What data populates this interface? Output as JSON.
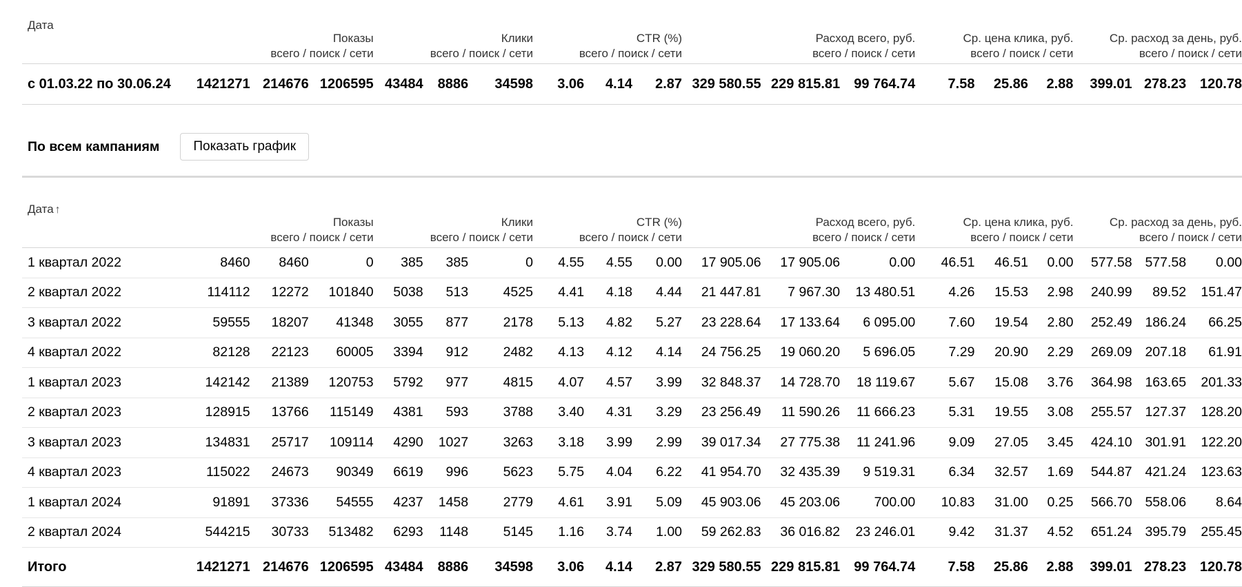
{
  "header": {
    "date": "Дата",
    "date_sortable": "Дата",
    "sort_arrow": "↑",
    "sub": "всего / поиск / сети",
    "impressions": "Показы",
    "clicks": "Клики",
    "ctr": "CTR (%)",
    "spend": "Расход всего, руб.",
    "avg_cpc": "Ср. цена клика, руб.",
    "avg_daily": "Ср. расход за день, руб."
  },
  "summary_row": [
    "с 01.03.22 по 30.06.24",
    "1421271",
    "214676",
    "1206595",
    "43484",
    "8886",
    "34598",
    "3.06",
    "4.14",
    "2.87",
    "329 580.55",
    "229 815.81",
    "99 764.74",
    "7.58",
    "25.86",
    "2.88",
    "399.01",
    "278.23",
    "120.78"
  ],
  "section": {
    "title": "По всем кампаниям",
    "chart_button": "Показать график"
  },
  "rows": [
    [
      "1 квартал 2022",
      "8460",
      "8460",
      "0",
      "385",
      "385",
      "0",
      "4.55",
      "4.55",
      "0.00",
      "17 905.06",
      "17 905.06",
      "0.00",
      "46.51",
      "46.51",
      "0.00",
      "577.58",
      "577.58",
      "0.00"
    ],
    [
      "2 квартал 2022",
      "114112",
      "12272",
      "101840",
      "5038",
      "513",
      "4525",
      "4.41",
      "4.18",
      "4.44",
      "21 447.81",
      "7 967.30",
      "13 480.51",
      "4.26",
      "15.53",
      "2.98",
      "240.99",
      "89.52",
      "151.47"
    ],
    [
      "3 квартал 2022",
      "59555",
      "18207",
      "41348",
      "3055",
      "877",
      "2178",
      "5.13",
      "4.82",
      "5.27",
      "23 228.64",
      "17 133.64",
      "6 095.00",
      "7.60",
      "19.54",
      "2.80",
      "252.49",
      "186.24",
      "66.25"
    ],
    [
      "4 квартал 2022",
      "82128",
      "22123",
      "60005",
      "3394",
      "912",
      "2482",
      "4.13",
      "4.12",
      "4.14",
      "24 756.25",
      "19 060.20",
      "5 696.05",
      "7.29",
      "20.90",
      "2.29",
      "269.09",
      "207.18",
      "61.91"
    ],
    [
      "1 квартал 2023",
      "142142",
      "21389",
      "120753",
      "5792",
      "977",
      "4815",
      "4.07",
      "4.57",
      "3.99",
      "32 848.37",
      "14 728.70",
      "18 119.67",
      "5.67",
      "15.08",
      "3.76",
      "364.98",
      "163.65",
      "201.33"
    ],
    [
      "2 квартал 2023",
      "128915",
      "13766",
      "115149",
      "4381",
      "593",
      "3788",
      "3.40",
      "4.31",
      "3.29",
      "23 256.49",
      "11 590.26",
      "11 666.23",
      "5.31",
      "19.55",
      "3.08",
      "255.57",
      "127.37",
      "128.20"
    ],
    [
      "3 квартал 2023",
      "134831",
      "25717",
      "109114",
      "4290",
      "1027",
      "3263",
      "3.18",
      "3.99",
      "2.99",
      "39 017.34",
      "27 775.38",
      "11 241.96",
      "9.09",
      "27.05",
      "3.45",
      "424.10",
      "301.91",
      "122.20"
    ],
    [
      "4 квартал 2023",
      "115022",
      "24673",
      "90349",
      "6619",
      "996",
      "5623",
      "5.75",
      "4.04",
      "6.22",
      "41 954.70",
      "32 435.39",
      "9 519.31",
      "6.34",
      "32.57",
      "1.69",
      "544.87",
      "421.24",
      "123.63"
    ],
    [
      "1 квартал 2024",
      "91891",
      "37336",
      "54555",
      "4237",
      "1458",
      "2779",
      "4.61",
      "3.91",
      "5.09",
      "45 903.06",
      "45 203.06",
      "700.00",
      "10.83",
      "31.00",
      "0.25",
      "566.70",
      "558.06",
      "8.64"
    ],
    [
      "2 квартал 2024",
      "544215",
      "30733",
      "513482",
      "6293",
      "1148",
      "5145",
      "1.16",
      "3.74",
      "1.00",
      "59 262.83",
      "36 016.82",
      "23 246.01",
      "9.42",
      "31.37",
      "4.52",
      "651.24",
      "395.79",
      "255.45"
    ]
  ],
  "total_row": [
    "Итого",
    "1421271",
    "214676",
    "1206595",
    "43484",
    "8886",
    "34598",
    "3.06",
    "4.14",
    "2.87",
    "329 580.55",
    "229 815.81",
    "99 764.74",
    "7.58",
    "25.86",
    "2.88",
    "399.01",
    "278.23",
    "120.78"
  ]
}
